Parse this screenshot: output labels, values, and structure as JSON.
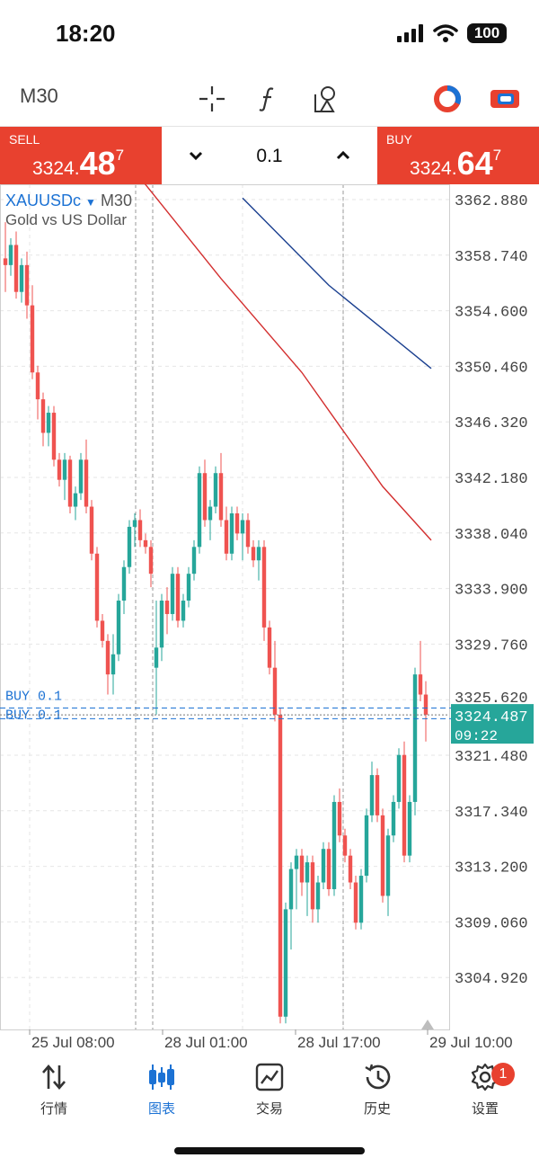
{
  "status_bar": {
    "time": "18:20",
    "battery": "100"
  },
  "toolbar": {
    "timeframe": "M30",
    "icons": [
      "crosshair-icon",
      "indicator-f-icon",
      "objects-icon",
      "account-donut-icon",
      "switch-icon"
    ]
  },
  "trade_panel": {
    "sell": {
      "label": "SELL",
      "price_prefix": "3324.",
      "price_big": "48",
      "price_sup": "7"
    },
    "buy": {
      "label": "BUY",
      "price_prefix": "3324.",
      "price_big": "64",
      "price_sup": "7"
    },
    "volume": "0.1"
  },
  "chart": {
    "symbol": "XAUUSDc",
    "symbol_arrow": "▼",
    "timeframe": "M30",
    "description": "Gold vs US Dollar",
    "current_price": "3324.487",
    "countdown": "09:22",
    "position_labels": [
      "BUY 0.1",
      "BUY 0.1"
    ],
    "colors": {
      "bull": "#26a69a",
      "bear": "#ef5350",
      "ma_fast": "#d32f2f",
      "ma_slow": "#1a3f8f",
      "grid": "#e6e6e6",
      "price_tag": "#26a69a",
      "position_line": "#1c72d4"
    }
  },
  "chart_data": {
    "type": "candlestick",
    "symbol": "XAUUSDc",
    "timeframe": "M30",
    "y_ticks": [
      3362.88,
      3358.74,
      3354.6,
      3350.46,
      3346.32,
      3342.18,
      3338.04,
      3333.9,
      3329.76,
      3325.62,
      3321.48,
      3317.34,
      3313.2,
      3309.06,
      3304.92
    ],
    "y_tick_labels": [
      "3362.880",
      "3358.740",
      "3354.600",
      "3350.460",
      "3346.320",
      "3342.180",
      "3338.040",
      "3333.900",
      "3329.760",
      "3325.620",
      "3321.480",
      "3317.340",
      "3313.200",
      "3309.060",
      "3304.920"
    ],
    "x_labels": [
      "25 Jul 08:00",
      "28 Jul 01:00",
      "28 Jul 17:00",
      "29 Jul 10:00"
    ],
    "last_price": 3324.487,
    "candles": [
      [
        3358.5,
        3361.2,
        3356.0,
        3358.0
      ],
      [
        3358.0,
        3360.0,
        3357.2,
        3359.5
      ],
      [
        3359.5,
        3360.5,
        3355.5,
        3356.0
      ],
      [
        3356.0,
        3358.5,
        3355.2,
        3358.0
      ],
      [
        3358.0,
        3359.0,
        3354.0,
        3355.0
      ],
      [
        3355.0,
        3356.5,
        3349.5,
        3350.0
      ],
      [
        3350.0,
        3350.5,
        3346.5,
        3348.0
      ],
      [
        3348.0,
        3348.5,
        3344.5,
        3345.5
      ],
      [
        3345.5,
        3347.5,
        3344.5,
        3347.0
      ],
      [
        3347.0,
        3347.5,
        3343.0,
        3343.5
      ],
      [
        3343.5,
        3344.0,
        3341.5,
        3342.0
      ],
      [
        3342.0,
        3344.0,
        3340.5,
        3343.5
      ],
      [
        3343.5,
        3343.8,
        3339.5,
        3340.0
      ],
      [
        3340.0,
        3341.5,
        3339.0,
        3341.0
      ],
      [
        3341.0,
        3344.0,
        3340.5,
        3343.5
      ],
      [
        3343.5,
        3345.0,
        3339.5,
        3340.0
      ],
      [
        3340.0,
        3340.5,
        3336.0,
        3336.5
      ],
      [
        3336.5,
        3337.0,
        3331.0,
        3331.5
      ],
      [
        3331.5,
        3332.0,
        3329.5,
        3330.0
      ],
      [
        3330.0,
        3330.5,
        3326.0,
        3327.5
      ],
      [
        3327.5,
        3330.5,
        3326.0,
        3329.0
      ],
      [
        3329.0,
        3333.5,
        3328.5,
        3333.0
      ],
      [
        3333.0,
        3336.0,
        3332.0,
        3335.5
      ],
      [
        3335.5,
        3339.0,
        3335.0,
        3338.5
      ],
      [
        3338.5,
        3339.5,
        3337.0,
        3339.0
      ],
      [
        3339.0,
        3339.8,
        3337.0,
        3337.5
      ],
      [
        3337.5,
        3338.0,
        3336.5,
        3337.0
      ],
      [
        3337.0,
        3337.5,
        3334.0,
        3335.0
      ],
      [
        3328.0,
        3333.0,
        3324.5,
        3329.5
      ],
      [
        3329.5,
        3333.5,
        3328.5,
        3333.0
      ],
      [
        3333.0,
        3334.0,
        3330.5,
        3332.0
      ],
      [
        3332.0,
        3335.5,
        3331.5,
        3335.0
      ],
      [
        3335.0,
        3335.5,
        3331.0,
        3331.5
      ],
      [
        3331.5,
        3333.5,
        3331.0,
        3333.0
      ],
      [
        3333.0,
        3335.5,
        3332.5,
        3335.0
      ],
      [
        3335.0,
        3337.5,
        3334.5,
        3337.0
      ],
      [
        3337.0,
        3343.0,
        3336.5,
        3342.5
      ],
      [
        3342.5,
        3343.5,
        3338.5,
        3339.0
      ],
      [
        3339.0,
        3340.5,
        3337.5,
        3340.0
      ],
      [
        3340.0,
        3343.0,
        3339.5,
        3342.5
      ],
      [
        3342.5,
        3344.0,
        3338.5,
        3339.0
      ],
      [
        3339.0,
        3340.0,
        3336.0,
        3336.5
      ],
      [
        3336.5,
        3340.0,
        3336.0,
        3339.5
      ],
      [
        3339.5,
        3340.0,
        3337.5,
        3338.0
      ],
      [
        3338.0,
        3339.5,
        3336.0,
        3339.0
      ],
      [
        3339.0,
        3339.5,
        3336.5,
        3337.0
      ],
      [
        3337.0,
        3337.5,
        3335.5,
        3336.0
      ],
      [
        3336.0,
        3337.5,
        3334.5,
        3337.0
      ],
      [
        3337.0,
        3337.5,
        3330.0,
        3331.0
      ],
      [
        3331.0,
        3331.5,
        3327.5,
        3328.0
      ],
      [
        3328.0,
        3330.0,
        3324.0,
        3324.5
      ],
      [
        3324.5,
        3325.0,
        3301.5,
        3302.0
      ],
      [
        3302.0,
        3310.5,
        3301.5,
        3310.0
      ],
      [
        3310.0,
        3313.5,
        3307.0,
        3313.0
      ],
      [
        3313.0,
        3314.5,
        3310.0,
        3314.0
      ],
      [
        3314.0,
        3314.5,
        3311.0,
        3312.0
      ],
      [
        3312.0,
        3314.0,
        3309.5,
        3313.5
      ],
      [
        3313.5,
        3314.0,
        3309.0,
        3310.0
      ],
      [
        3310.0,
        3312.5,
        3309.0,
        3312.0
      ],
      [
        3312.0,
        3315.0,
        3311.5,
        3314.5
      ],
      [
        3314.5,
        3315.0,
        3311.0,
        3311.5
      ],
      [
        3311.5,
        3318.5,
        3311.0,
        3318.0
      ],
      [
        3318.0,
        3319.0,
        3315.0,
        3315.5
      ],
      [
        3315.5,
        3316.0,
        3313.5,
        3314.0
      ],
      [
        3314.0,
        3314.5,
        3311.5,
        3312.0
      ],
      [
        3312.0,
        3312.5,
        3308.5,
        3309.0
      ],
      [
        3309.0,
        3313.0,
        3308.5,
        3312.5
      ],
      [
        3312.5,
        3317.5,
        3312.0,
        3317.0
      ],
      [
        3317.0,
        3321.0,
        3316.5,
        3320.0
      ],
      [
        3320.0,
        3320.5,
        3316.5,
        3317.0
      ],
      [
        3317.0,
        3317.5,
        3310.5,
        3311.0
      ],
      [
        3311.0,
        3316.0,
        3309.5,
        3315.5
      ],
      [
        3315.5,
        3318.5,
        3315.0,
        3318.0
      ],
      [
        3318.0,
        3322.0,
        3317.5,
        3321.5
      ],
      [
        3321.5,
        3322.5,
        3313.5,
        3314.0
      ],
      [
        3314.0,
        3318.5,
        3313.5,
        3318.0
      ],
      [
        3318.0,
        3328.0,
        3317.0,
        3327.5
      ],
      [
        3327.5,
        3330.0,
        3325.5,
        3326.0
      ],
      [
        3326.0,
        3327.0,
        3322.5,
        3324.5
      ]
    ],
    "ma_fast_points": [
      [
        20,
        3367.0
      ],
      [
        40,
        3357.0
      ],
      [
        55,
        3350.0
      ],
      [
        70,
        3341.5
      ],
      [
        79,
        3337.5
      ]
    ],
    "ma_slow_points": [
      [
        44,
        3363.0
      ],
      [
        60,
        3356.5
      ],
      [
        79,
        3350.3
      ]
    ]
  },
  "tabbar": {
    "tabs": [
      {
        "label": "行情",
        "icon": "quotes-arrows-icon"
      },
      {
        "label": "图表",
        "icon": "chart-candles-icon"
      },
      {
        "label": "交易",
        "icon": "trade-graph-icon"
      },
      {
        "label": "历史",
        "icon": "history-clock-icon"
      },
      {
        "label": "设置",
        "icon": "settings-gear-icon"
      }
    ],
    "settings_badge": "1"
  }
}
